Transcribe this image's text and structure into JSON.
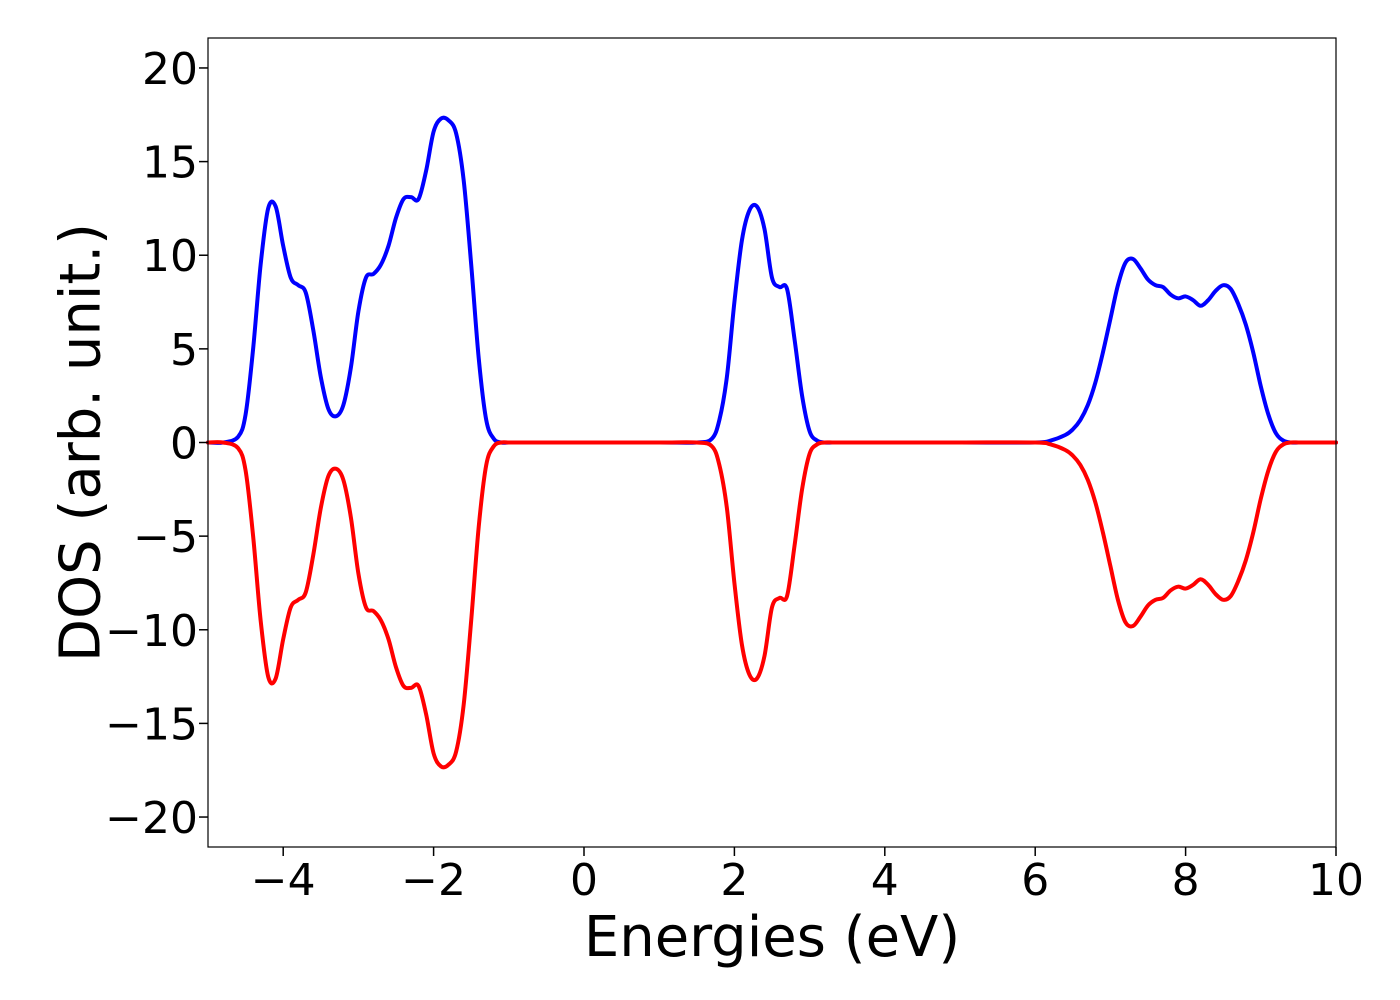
{
  "chart_data": {
    "type": "line",
    "title": "",
    "xlabel": "Energies (eV)",
    "ylabel": "DOS (arb. unit.)",
    "xlim": [
      -5,
      10
    ],
    "ylim": [
      -21.6,
      21.6
    ],
    "xticks": [
      -4,
      -2,
      0,
      2,
      4,
      6,
      8,
      10
    ],
    "xtick_labels": [
      "−4",
      "−2",
      "0",
      "2",
      "4",
      "6",
      "8",
      "10"
    ],
    "yticks": [
      20,
      15,
      10,
      5,
      0,
      -5,
      -10,
      -15,
      -20
    ],
    "ytick_labels": [
      "20",
      "15",
      "10",
      "5",
      "0",
      "−5",
      "−10",
      "−15",
      "−20"
    ],
    "grid": false,
    "legend": "none",
    "series": [
      {
        "color": "#0000ff",
        "x": [
          -5.0,
          -4.8,
          -4.6,
          -4.5,
          -4.4,
          -4.3,
          -4.2,
          -4.1,
          -4.0,
          -3.9,
          -3.8,
          -3.7,
          -3.6,
          -3.5,
          -3.4,
          -3.3,
          -3.2,
          -3.1,
          -3.0,
          -2.9,
          -2.8,
          -2.7,
          -2.6,
          -2.5,
          -2.4,
          -2.3,
          -2.2,
          -2.1,
          -2.0,
          -1.9,
          -1.8,
          -1.7,
          -1.6,
          -1.5,
          -1.4,
          -1.3,
          -1.2,
          -1.1,
          -1.0,
          -0.9,
          -0.8,
          -0.7,
          -0.6,
          -0.5,
          0.0,
          1.0,
          1.5,
          1.7,
          1.8,
          1.9,
          2.0,
          2.1,
          2.2,
          2.3,
          2.4,
          2.5,
          2.6,
          2.7,
          2.8,
          2.9,
          3.0,
          3.1,
          3.2,
          3.3,
          3.4,
          3.5,
          3.6,
          3.7,
          4.0,
          5.0,
          6.0,
          6.2,
          6.4,
          6.5,
          6.6,
          6.7,
          6.8,
          6.9,
          7.0,
          7.1,
          7.2,
          7.3,
          7.4,
          7.5,
          7.6,
          7.7,
          7.8,
          7.9,
          8.0,
          8.1,
          8.2,
          8.3,
          8.4,
          8.5,
          8.6,
          8.7,
          8.8,
          8.9,
          9.0,
          9.1,
          9.2,
          9.3,
          9.4,
          9.5,
          9.6,
          9.7,
          9.8,
          10.0
        ],
        "y": [
          0.0,
          0.0,
          0.3,
          1.5,
          5.0,
          9.5,
          12.5,
          12.6,
          10.5,
          8.8,
          8.4,
          8.0,
          6.0,
          3.5,
          1.8,
          1.4,
          2.0,
          4.0,
          7.0,
          8.8,
          9.0,
          9.5,
          10.5,
          12.0,
          13.0,
          13.1,
          13.0,
          14.5,
          16.6,
          17.3,
          17.2,
          16.5,
          14.0,
          9.5,
          4.5,
          1.2,
          0.2,
          0.0,
          0.0,
          0.0,
          0.0,
          0.0,
          0.0,
          0.0,
          0.0,
          0.0,
          0.0,
          0.2,
          1.2,
          3.5,
          7.5,
          10.8,
          12.4,
          12.6,
          11.4,
          8.8,
          8.3,
          8.2,
          5.5,
          2.5,
          0.6,
          0.1,
          0.0,
          0.0,
          0.0,
          0.0,
          0.0,
          0.0,
          0.0,
          0.0,
          0.0,
          0.1,
          0.4,
          0.7,
          1.2,
          2.0,
          3.2,
          4.8,
          6.6,
          8.4,
          9.6,
          9.8,
          9.3,
          8.7,
          8.4,
          8.3,
          7.9,
          7.7,
          7.8,
          7.6,
          7.3,
          7.6,
          8.1,
          8.4,
          8.2,
          7.4,
          6.3,
          4.8,
          3.0,
          1.5,
          0.5,
          0.1,
          0.0,
          0.0,
          0.0,
          0.0,
          0.0,
          0.0
        ]
      },
      {
        "color": "#ff0000",
        "x": [
          -5.0,
          -4.8,
          -4.6,
          -4.5,
          -4.4,
          -4.3,
          -4.2,
          -4.1,
          -4.0,
          -3.9,
          -3.8,
          -3.7,
          -3.6,
          -3.5,
          -3.4,
          -3.3,
          -3.2,
          -3.1,
          -3.0,
          -2.9,
          -2.8,
          -2.7,
          -2.6,
          -2.5,
          -2.4,
          -2.3,
          -2.2,
          -2.1,
          -2.0,
          -1.9,
          -1.8,
          -1.7,
          -1.6,
          -1.5,
          -1.4,
          -1.3,
          -1.2,
          -1.1,
          -1.0,
          -0.9,
          -0.8,
          -0.7,
          -0.6,
          -0.5,
          0.0,
          1.0,
          1.5,
          1.7,
          1.8,
          1.9,
          2.0,
          2.1,
          2.2,
          2.3,
          2.4,
          2.5,
          2.6,
          2.7,
          2.8,
          2.9,
          3.0,
          3.1,
          3.2,
          3.3,
          3.4,
          3.5,
          3.6,
          3.7,
          4.0,
          5.0,
          6.0,
          6.2,
          6.4,
          6.5,
          6.6,
          6.7,
          6.8,
          6.9,
          7.0,
          7.1,
          7.2,
          7.3,
          7.4,
          7.5,
          7.6,
          7.7,
          7.8,
          7.9,
          8.0,
          8.1,
          8.2,
          8.3,
          8.4,
          8.5,
          8.6,
          8.7,
          8.8,
          8.9,
          9.0,
          9.1,
          9.2,
          9.3,
          9.4,
          9.5,
          9.6,
          9.7,
          9.8,
          10.0
        ],
        "y": [
          0.0,
          0.0,
          -0.3,
          -1.5,
          -5.0,
          -9.5,
          -12.5,
          -12.6,
          -10.5,
          -8.8,
          -8.4,
          -8.0,
          -6.0,
          -3.5,
          -1.8,
          -1.4,
          -2.0,
          -4.0,
          -7.0,
          -8.8,
          -9.0,
          -9.5,
          -10.5,
          -12.0,
          -13.0,
          -13.1,
          -13.0,
          -14.5,
          -16.6,
          -17.3,
          -17.2,
          -16.5,
          -14.0,
          -9.5,
          -4.5,
          -1.2,
          -0.2,
          0.0,
          0.0,
          0.0,
          0.0,
          0.0,
          0.0,
          0.0,
          0.0,
          0.0,
          0.0,
          -0.2,
          -1.2,
          -3.5,
          -7.5,
          -10.8,
          -12.4,
          -12.6,
          -11.4,
          -8.8,
          -8.3,
          -8.2,
          -5.5,
          -2.5,
          -0.6,
          -0.1,
          0.0,
          0.0,
          0.0,
          0.0,
          0.0,
          0.0,
          0.0,
          0.0,
          0.0,
          -0.1,
          -0.4,
          -0.7,
          -1.2,
          -2.0,
          -3.2,
          -4.8,
          -6.6,
          -8.4,
          -9.6,
          -9.8,
          -9.3,
          -8.7,
          -8.4,
          -8.3,
          -7.9,
          -7.7,
          -7.8,
          -7.6,
          -7.3,
          -7.6,
          -8.1,
          -8.4,
          -8.2,
          -7.4,
          -6.3,
          -4.8,
          -3.0,
          -1.5,
          -0.5,
          -0.1,
          0.0,
          0.0,
          0.0,
          0.0,
          0.0,
          0.0
        ]
      }
    ]
  }
}
